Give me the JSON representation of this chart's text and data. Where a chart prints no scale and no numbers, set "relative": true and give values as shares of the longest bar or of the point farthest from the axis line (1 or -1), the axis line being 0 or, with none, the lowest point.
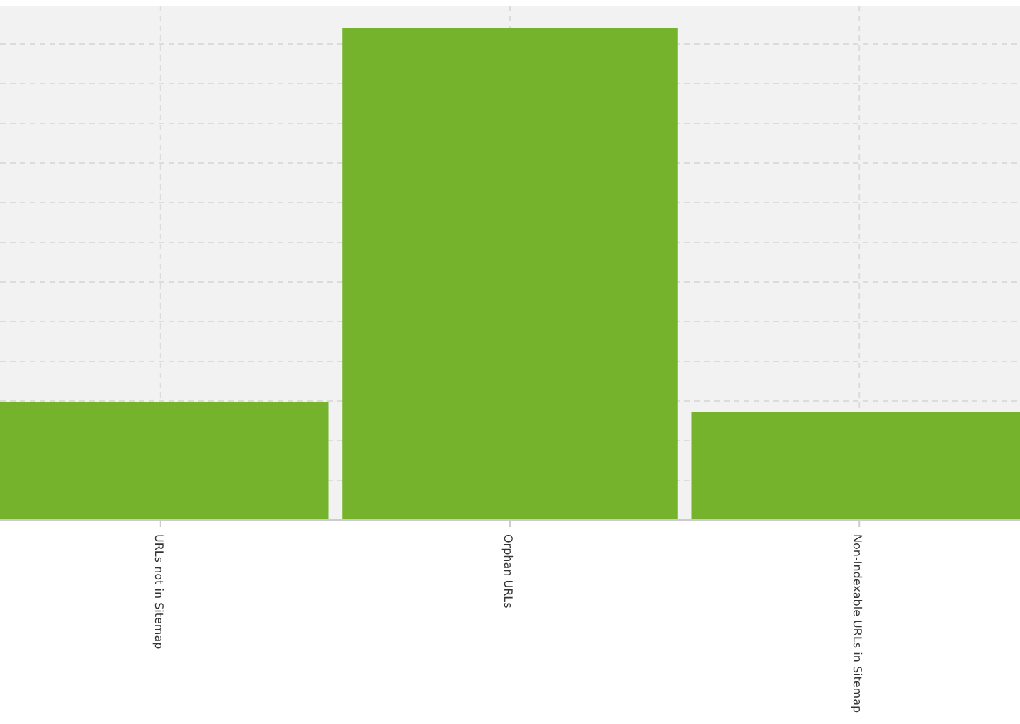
{
  "chart_data": {
    "type": "bar",
    "relative": true,
    "categories": [
      "URLs not in Sitemap",
      "Orphan URLs",
      "Non-Indexable URLs in Sitemap"
    ],
    "values": [
      0.24,
      1,
      0.22
    ],
    "color": "#74b32b",
    "grid": true
  }
}
